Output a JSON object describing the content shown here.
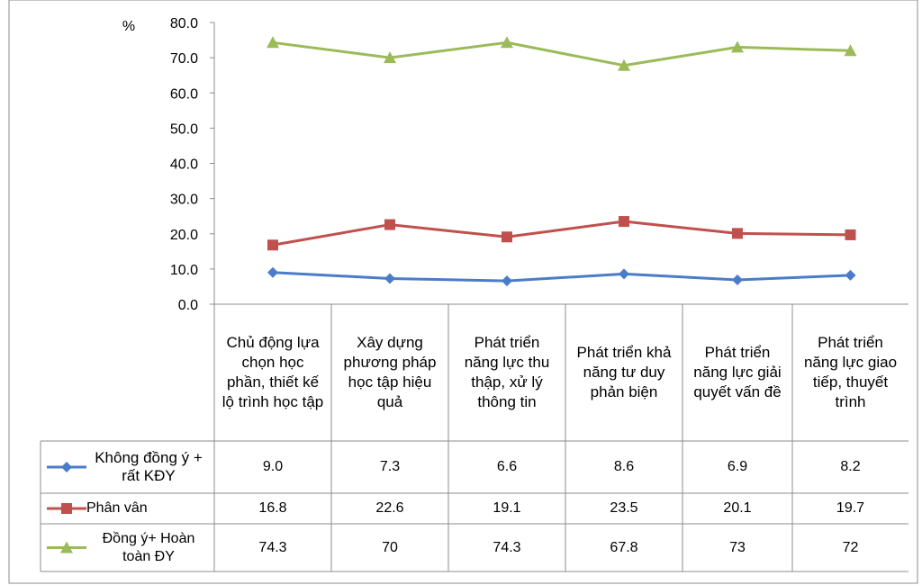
{
  "chart_data": {
    "type": "line",
    "ylabel": "%",
    "ylim": [
      0,
      80
    ],
    "yticks": [
      "0.0",
      "10.0",
      "20.0",
      "30.0",
      "40.0",
      "50.0",
      "60.0",
      "70.0",
      "80.0"
    ],
    "grid": false,
    "legend_placement": "data-table-left",
    "categories": [
      "Chủ động lựa chọn học phần, thiết kế lộ trình học tập",
      "Xây dựng phương pháp học tập hiệu quả",
      "Phát triển năng lực thu thập, xử lý thông tin",
      "Phát triển khả năng tư duy phản biện",
      "Phát triển năng lực giải quyết vấn đề",
      "Phát triển năng lực giao tiếp, thuyết trình"
    ],
    "series": [
      {
        "name": "Không đồng ý + rất KĐY",
        "color": "#4a7cc9",
        "marker": "diamond",
        "values": [
          9.0,
          7.3,
          6.6,
          8.6,
          6.9,
          8.2
        ],
        "labels": [
          "9.0",
          "7.3",
          "6.6",
          "8.6",
          "6.9",
          "8.2"
        ]
      },
      {
        "name": "Phân vân",
        "color": "#c0504d",
        "marker": "square",
        "values": [
          16.8,
          22.6,
          19.1,
          23.5,
          20.1,
          19.7
        ],
        "labels": [
          "16.8",
          "22.6",
          "19.1",
          "23.5",
          "20.1",
          "19.7"
        ]
      },
      {
        "name": "Đồng ý+ Hoàn toàn ĐY",
        "color": "#9bbb59",
        "marker": "triangle",
        "values": [
          74.3,
          70,
          74.3,
          67.8,
          73,
          72
        ],
        "labels": [
          "74.3",
          "70",
          "74.3",
          "67.8",
          "73",
          "72"
        ]
      }
    ]
  }
}
